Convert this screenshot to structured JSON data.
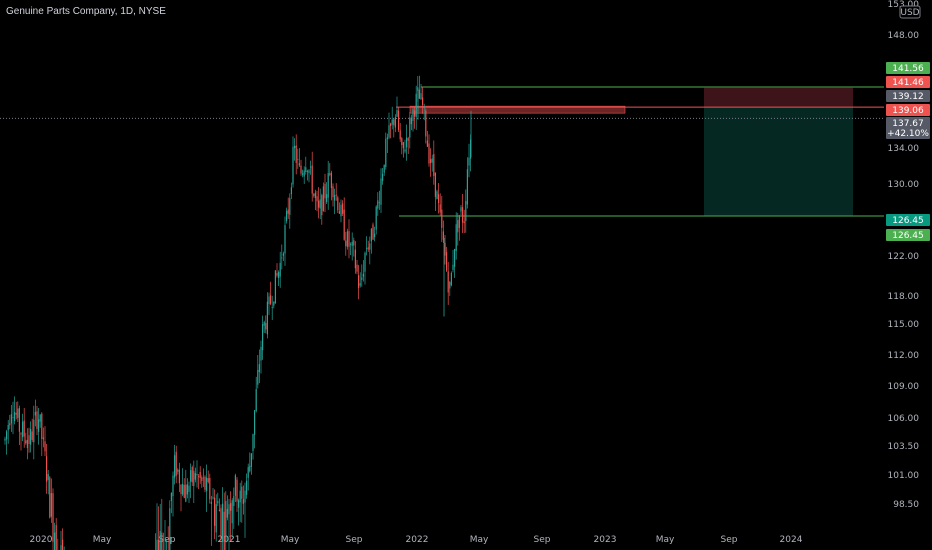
{
  "header": {
    "title": "Genuine Parts Company, 1D, NYSE"
  },
  "chart_data": {
    "type": "candlestick",
    "currency": "USD",
    "y_ticks": [
      98.5,
      101.0,
      103.5,
      106.0,
      109.0,
      112.0,
      115.0,
      118.0,
      122.0,
      126.0,
      130.0,
      134.0,
      148.0
    ],
    "y_tick_labels": [
      "98.50",
      "101.00",
      "103.50",
      "106.00",
      "109.00",
      "112.00",
      "115.00",
      "118.00",
      "122.00",
      "126.00",
      "130.00",
      "134.00",
      "148.00"
    ],
    "top_partial_label": "153.00",
    "x_labels": [
      "2020",
      "May",
      "Sep",
      "2021",
      "May",
      "Sep",
      "2022",
      "May",
      "Sep",
      "2023",
      "May",
      "Sep",
      "2024"
    ],
    "price_tags": [
      {
        "label": "141.56",
        "value": 141.56,
        "color": "#4caf50"
      },
      {
        "label": "141.46",
        "value": 141.46,
        "color": "#ef5350"
      },
      {
        "label": "139.12",
        "value": 139.12,
        "color": "#555a66"
      },
      {
        "label": "139.06",
        "value": 139.06,
        "color": "#ef5350"
      },
      {
        "label": "137.67",
        "value": 137.67,
        "color": "#555a66",
        "sub": "+42.10%"
      },
      {
        "label": "126.45",
        "value": 126.45,
        "color": "#089981"
      },
      {
        "label": "126.45",
        "value": 126.45,
        "color": "#4caf50"
      }
    ],
    "position": {
      "type": "short",
      "entry": 139.06,
      "stop": 141.46,
      "target": 126.45
    },
    "key_levels": {
      "upper": 141.56,
      "lower": 126.45
    },
    "last_price": 137.67,
    "change_percent": "+42.10%",
    "colors": {
      "up": "#26a69a",
      "down": "#ef5350",
      "stop_zone": "#3d1419",
      "target_zone": "#062822",
      "level_line": "#4caf50"
    }
  }
}
